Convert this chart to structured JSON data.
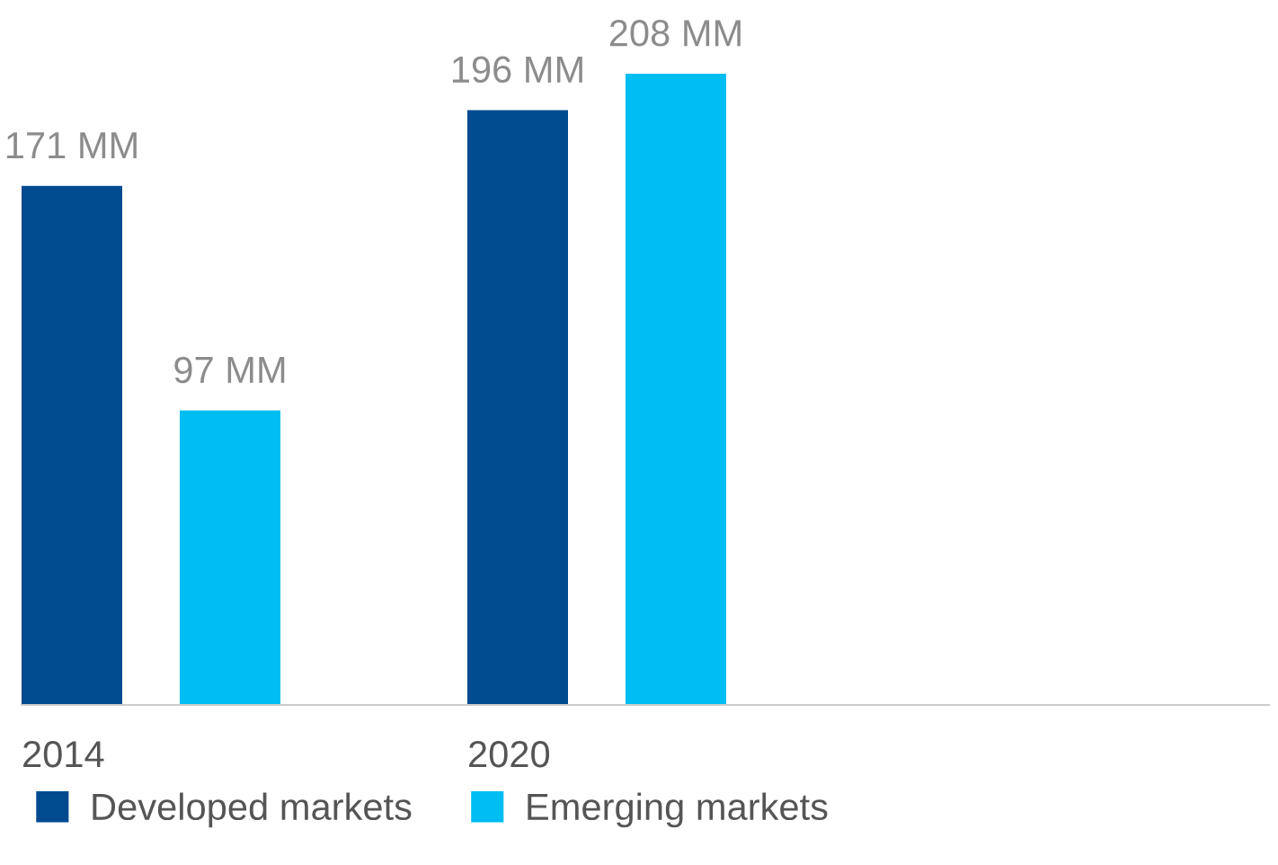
{
  "chart_data": {
    "type": "bar",
    "categories": [
      "2014",
      "2020"
    ],
    "series": [
      {
        "name": "Developed markets",
        "color": "#004a8f",
        "values": [
          171,
          196
        ],
        "value_labels": [
          "171 MM",
          "196 MM"
        ]
      },
      {
        "name": "Emerging markets",
        "color": "#00bdf2",
        "values": [
          97,
          208
        ],
        "value_labels": [
          "97 MM",
          "208 MM"
        ]
      }
    ],
    "legend": "bottom",
    "grid": false
  }
}
